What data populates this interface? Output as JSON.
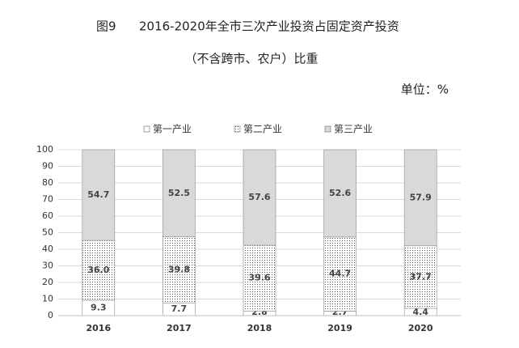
{
  "chart_data": {
    "type": "stacked_bar",
    "figure_label": "图9",
    "title": "2016-2020年全市三次产业投资占固定资产投资",
    "subtitle": "（不含跨市、农户）比重",
    "unit": "单位：%",
    "categories": [
      "2016",
      "2017",
      "2018",
      "2019",
      "2020"
    ],
    "series": [
      {
        "name": "第一产业",
        "color": "#ffffff",
        "pattern": "solid",
        "values": [
          9.3,
          7.7,
          2.8,
          2.7,
          4.4
        ]
      },
      {
        "name": "第二产业",
        "color": "#ffffff",
        "pattern": "dots",
        "values": [
          36.0,
          39.8,
          39.6,
          44.7,
          37.7
        ],
        "value_labels": [
          "36.0",
          "39.8",
          "39.6",
          "44.7",
          "37.7"
        ]
      },
      {
        "name": "第三产业",
        "color": "#d9d9d9",
        "pattern": "solid",
        "values": [
          54.7,
          52.5,
          57.6,
          52.6,
          57.9
        ]
      }
    ],
    "ylim": [
      0,
      100
    ],
    "yticks": [
      0,
      10,
      20,
      30,
      40,
      50,
      60,
      70,
      80,
      90,
      100
    ],
    "grid": true,
    "legend": "top"
  }
}
